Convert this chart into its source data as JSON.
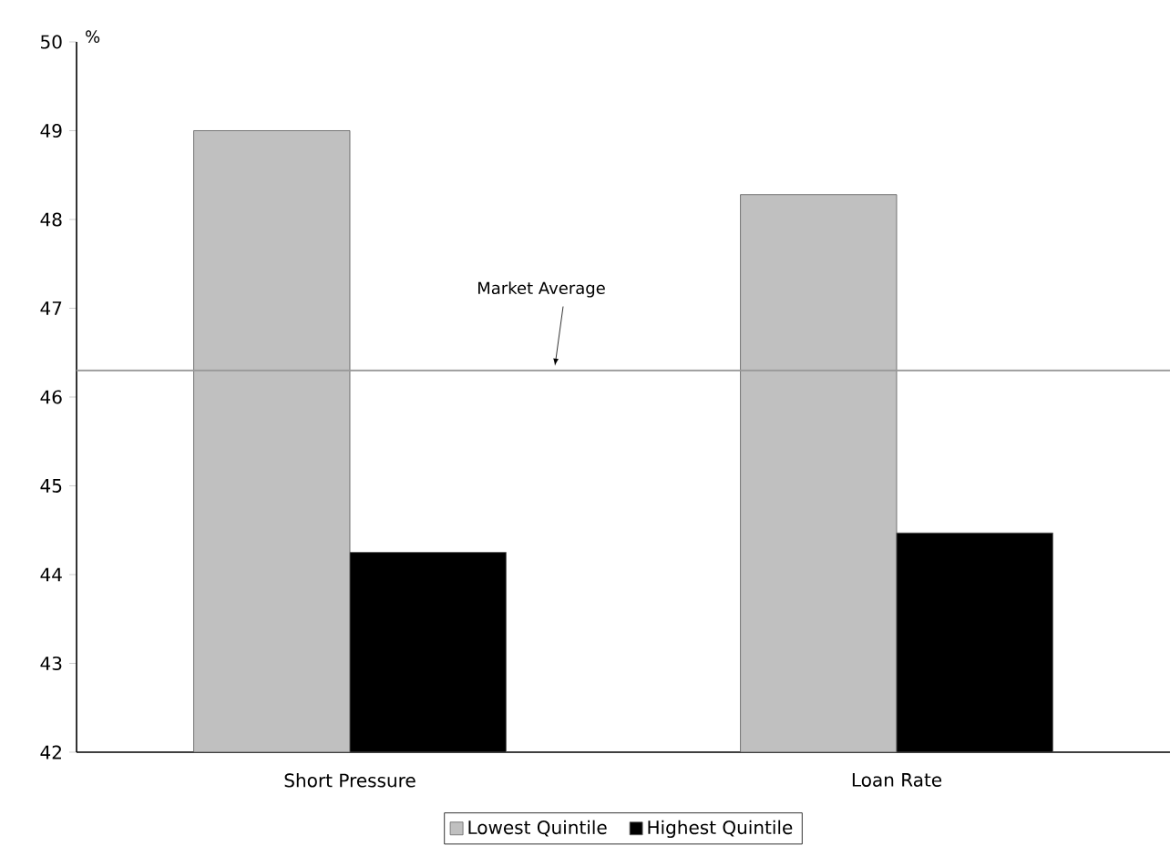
{
  "chart_data": {
    "type": "bar",
    "categories": [
      "Short Pressure",
      "Loan Rate"
    ],
    "series": [
      {
        "name": "Lowest Quintile",
        "color": "#c0c0c0",
        "values": [
          49.0,
          48.28
        ]
      },
      {
        "name": "Highest Quintile",
        "color": "#000000",
        "values": [
          44.25,
          44.47
        ]
      }
    ],
    "ylabel": "%",
    "ylim": [
      42,
      50
    ],
    "yticks": [
      42,
      43,
      44,
      45,
      46,
      47,
      48,
      49,
      50
    ],
    "ref_lines": [
      {
        "axis": "y",
        "value": 46.3,
        "label": "Market Average",
        "color": "#999999"
      }
    ],
    "grid": false,
    "legend": "bottom"
  }
}
